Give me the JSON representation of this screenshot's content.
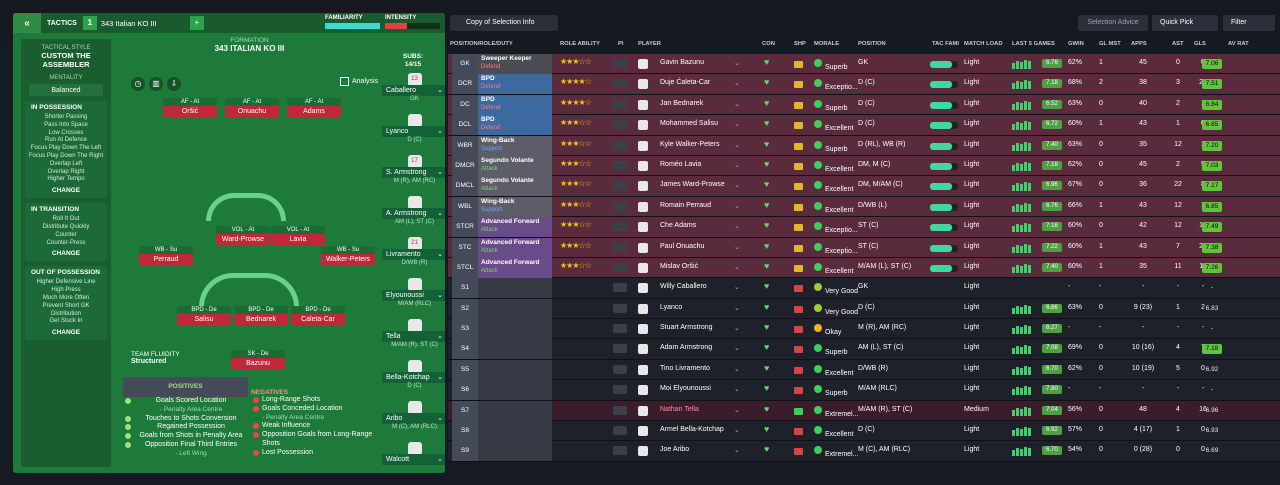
{
  "tactics": {
    "back_label": "«",
    "title": "TACTICS",
    "slot_num": "1",
    "tactic_name": "343 Italian KO III",
    "add": "+",
    "familiarity_label": "FAMILIARITY",
    "intensity_label": "INTENSITY",
    "formation_label": "FORMATION",
    "formation_name": "343 ITALIAN KO III",
    "tactical_style_label": "TACTICAL STYLE",
    "tactical_style": "CUSTOM THE ASSEMBLER",
    "mentality_label": "MENTALITY",
    "mentality": "Balanced",
    "in_possession": {
      "title": "IN POSSESSION",
      "items": [
        "Shorter Passing",
        "Pass Into Space",
        "Low Crosses",
        "Run At Defence",
        "Focus Play Down The Left",
        "Focus Play Down The Right",
        "Overlap Left",
        "Overlap Right",
        "Higher Tempo"
      ],
      "change": "CHANGE"
    },
    "in_transition": {
      "title": "IN TRANSITION",
      "items": [
        "Roll It Out",
        "Distribute Quickly",
        "Counter",
        "Counter-Press"
      ],
      "change": "CHANGE"
    },
    "out_of_possession": {
      "title": "OUT OF POSSESSION",
      "items": [
        "Higher Defensive Line",
        "High Press",
        "Much More Often",
        "Prevent Short GK",
        "Distribution",
        "Get Stuck In"
      ],
      "change": "CHANGE"
    },
    "analysis": "Analysis",
    "subs_label": "SUBS:",
    "subs_count": "14/15",
    "fluidity_label": "TEAM FLUIDITY",
    "fluidity": "Structured",
    "pitch_players": [
      {
        "role": "AF - At",
        "name": "Oršić"
      },
      {
        "role": "AF - At",
        "name": "Onuachu"
      },
      {
        "role": "AF - At",
        "name": "Adams"
      },
      {
        "role": "WB - Su",
        "name": "Perraud"
      },
      {
        "role": "VOL - At",
        "name": "Ward-Prowse"
      },
      {
        "role": "VOL - At",
        "name": "Lavia"
      },
      {
        "role": "WB - Su",
        "name": "Walker-Peters"
      },
      {
        "role": "BPD - De",
        "name": "Salisu"
      },
      {
        "role": "BPD - De",
        "name": "Bednarek"
      },
      {
        "role": "BPD - De",
        "name": "Caleta-Car"
      },
      {
        "role": "SK - De",
        "name": "Bazunu"
      }
    ],
    "subs": [
      {
        "num": "13",
        "name": "Caballero",
        "pos": "GK"
      },
      {
        "num": "",
        "name": "Lyanco",
        "pos": "D (C)"
      },
      {
        "num": "17",
        "name": "S. Armstrong",
        "pos": "M (R), AM (RC)"
      },
      {
        "num": "",
        "name": "A. Armstrong",
        "pos": "AM (L), ST (C)"
      },
      {
        "num": "21",
        "name": "Livramento",
        "pos": "D/WB (R)"
      },
      {
        "num": "",
        "name": "Elyounoussi",
        "pos": "M/AM (RLC)"
      },
      {
        "num": "",
        "name": "Tella",
        "pos": "M/AM (R), ST (C)"
      },
      {
        "num": "",
        "name": "Bella-Kotchap",
        "pos": "D (C)"
      },
      {
        "num": "",
        "name": "Aribo",
        "pos": "M (C), AM (RLC)"
      },
      {
        "num": "",
        "name": "Walcott",
        "pos": ""
      }
    ],
    "recent_label": "RECENT MATCHES ANALYSIS",
    "positives_label": "POSITIVES",
    "positives": [
      "Goals Scored Location",
      "Touches to Shots Conversion",
      "Regained Possession",
      "Goals from Shots in Penalty Area",
      "Opposition Final Third Entries"
    ],
    "positives_sub": {
      "0": "- Penalty Area Centre",
      "4": "- Left Wing"
    },
    "negatives_label": "NEGATIVES",
    "negatives": [
      "Long-Range Shots",
      "Goals Conceded Location",
      "Weak Influence",
      "Opposition Goals from Long-Range Shots",
      "Lost Possession"
    ],
    "negatives_sub": {
      "1": "- Penalty Area Centre"
    }
  },
  "squad": {
    "copy_label": "Copy of Selection Info",
    "advice": "Selection Advice",
    "quick_pick": "Quick Pick",
    "filter": "Filter",
    "headers": [
      "POSITION/ROLE/DUTY",
      "ROLE ABILITY",
      "PI",
      "PLAYER",
      "CON",
      "SHP",
      "MORALE",
      "POSITION",
      "TAC FAMI",
      "MATCH LOAD",
      "LAST 5 GAMES",
      "GWIN",
      "GL MST",
      "APPS",
      "AST",
      "GLS",
      "AV RAT"
    ],
    "rows": [
      {
        "pos": "GK",
        "role": "Sweeper Keeper",
        "duty": "Defend",
        "d": "d",
        "stars": "★★★☆☆",
        "name": "Gavin Bazunu",
        "morale": "Superb",
        "position": "GK",
        "load": "Light",
        "r5": "6.76",
        "gwin": "62%",
        "glm": "1",
        "apps": "45",
        "ast": "0",
        "gls": "0",
        "av": "7.06"
      },
      {
        "pos": "DCR",
        "role": "BPD",
        "duty": "Defend",
        "d": "d",
        "stars": "★★★★☆",
        "name": "Duje Ćaleta-Car",
        "morale": "Exceptio...",
        "position": "D (C)",
        "load": "Light",
        "r5": "7.18",
        "gwin": "68%",
        "glm": "2",
        "apps": "38",
        "ast": "3",
        "gls": "22",
        "av": "7.51"
      },
      {
        "pos": "DC",
        "role": "BPD",
        "duty": "Defend",
        "d": "d",
        "stars": "★★★★☆",
        "name": "Jan Bednarek",
        "morale": "Superb",
        "position": "D (C)",
        "load": "Light",
        "r5": "6.52",
        "gwin": "63%",
        "glm": "0",
        "apps": "40",
        "ast": "2",
        "gls": "1",
        "av": "6.84"
      },
      {
        "pos": "DCL",
        "role": "BPD",
        "duty": "Defend",
        "d": "d",
        "stars": "★★★☆☆",
        "name": "Mohammed Salisu",
        "morale": "Excellent",
        "position": "D (C)",
        "load": "Light",
        "r5": "6.72",
        "gwin": "60%",
        "glm": "1",
        "apps": "43",
        "ast": "1",
        "gls": "0",
        "av": "6.85"
      },
      {
        "pos": "WBR",
        "role": "Wing-Back",
        "duty": "Support",
        "d": "s",
        "stars": "★★★☆☆",
        "name": "Kyle Walker-Peters",
        "morale": "Superb",
        "position": "D (RL), WB (R)",
        "load": "Light",
        "r5": "7.40",
        "gwin": "63%",
        "glm": "0",
        "apps": "35",
        "ast": "12",
        "gls": "1",
        "av": "7.20"
      },
      {
        "pos": "DMCR",
        "role": "Segundo Volante",
        "duty": "Attack",
        "d": "a",
        "stars": "★★★☆☆",
        "name": "Roméo Lavia",
        "morale": "Excellent",
        "position": "DM, M (C)",
        "load": "Light",
        "r5": "7.18",
        "gwin": "62%",
        "glm": "0",
        "apps": "45",
        "ast": "2",
        "gls": "9",
        "av": "7.03"
      },
      {
        "pos": "DMCL",
        "role": "Segundo Volante",
        "duty": "Attack",
        "d": "a",
        "stars": "★★★☆☆",
        "name": "James Ward-Prowse",
        "morale": "Excellent",
        "position": "DM, M/AM (C)",
        "load": "Light",
        "r5": "6.96",
        "gwin": "67%",
        "glm": "0",
        "apps": "36",
        "ast": "22",
        "gls": "8",
        "av": "7.17"
      },
      {
        "pos": "WBL",
        "role": "Wing-Back",
        "duty": "Support",
        "d": "s",
        "stars": "★★★☆☆",
        "name": "Romain Perraud",
        "morale": "Excellent",
        "position": "D/WB (L)",
        "load": "Light",
        "r5": "6.76",
        "gwin": "66%",
        "glm": "1",
        "apps": "43",
        "ast": "12",
        "gls": "1",
        "av": "6.85"
      },
      {
        "pos": "STCR",
        "role": "Advanced Forward",
        "duty": "Attack",
        "d": "a",
        "stars": "★★★☆☆",
        "name": "Che Adams",
        "morale": "Exceptio...",
        "position": "ST (C)",
        "load": "Light",
        "r5": "7.18",
        "gwin": "60%",
        "glm": "0",
        "apps": "42",
        "ast": "12",
        "gls": "18",
        "av": "7.49"
      },
      {
        "pos": "STC",
        "role": "Advanced Forward",
        "duty": "Attack",
        "d": "a",
        "stars": "★★★☆☆",
        "name": "Paul Onuachu",
        "morale": "Exceptio...",
        "position": "ST (C)",
        "load": "Light",
        "r5": "7.22",
        "gwin": "60%",
        "glm": "1",
        "apps": "43",
        "ast": "7",
        "gls": "28",
        "av": "7.38"
      },
      {
        "pos": "STCL",
        "role": "Advanced Forward",
        "duty": "Attack",
        "d": "a",
        "stars": "★★★☆☆",
        "name": "Mislav Oršić",
        "morale": "Excellent",
        "position": "M/AM (L), ST (C)",
        "load": "Light",
        "r5": "7.40",
        "gwin": "60%",
        "glm": "1",
        "apps": "35",
        "ast": "11",
        "gls": "11",
        "av": "7.26"
      },
      {
        "pos": "S1",
        "name": "Willy Caballero",
        "morale": "Very Good",
        "position": "GK",
        "load": "Light",
        "r5": "",
        "gwin": "-",
        "glm": "-",
        "apps": "-",
        "ast": "-",
        "gls": "-",
        "av": "-"
      },
      {
        "pos": "S2",
        "name": "Lyanco",
        "morale": "Very Good",
        "position": "D (C)",
        "load": "Light",
        "r5": "6.86",
        "gwin": "63%",
        "glm": "0",
        "apps": "9 (23)",
        "ast": "1",
        "gls": "2",
        "av": "6.83"
      },
      {
        "pos": "S3",
        "name": "Stuart Armstrong",
        "morale": "Okay",
        "position": "M (R), AM (RC)",
        "load": "Light",
        "r5": "6.27",
        "gwin": "-",
        "glm": "-",
        "apps": "-",
        "ast": "-",
        "gls": "-",
        "av": "-"
      },
      {
        "pos": "S4",
        "name": "Adam Armstrong",
        "morale": "Superb",
        "position": "AM (L), ST (C)",
        "load": "Light",
        "r5": "7.08",
        "gwin": "69%",
        "glm": "0",
        "apps": "10 (16)",
        "ast": "4",
        "gls": "7",
        "av": "7.18"
      },
      {
        "pos": "S5",
        "name": "Tino Livramento",
        "morale": "Excellent",
        "position": "D/WB (R)",
        "load": "Light",
        "r5": "6.70",
        "gwin": "62%",
        "glm": "0",
        "apps": "10 (19)",
        "ast": "5",
        "gls": "0",
        "av": "6.92"
      },
      {
        "pos": "S6",
        "name": "Moi Elyounoussi",
        "morale": "Superb",
        "position": "M/AM (RLC)",
        "load": "Light",
        "r5": "7.80",
        "gwin": "-",
        "glm": "-",
        "apps": "-",
        "ast": "-",
        "gls": "-",
        "av": "-"
      },
      {
        "pos": "S7",
        "name": "Nathan Tella",
        "morale": "Extremel...",
        "position": "M/AM (R), ST (C)",
        "load": "Medium",
        "r5": "7.04",
        "gwin": "56%",
        "glm": "0",
        "apps": "48",
        "ast": "4",
        "gls": "16",
        "av": "6.96"
      },
      {
        "pos": "S8",
        "name": "Armel Bella-Kotchap",
        "morale": "Excellent",
        "position": "D (C)",
        "load": "Light",
        "r5": "6.92",
        "gwin": "57%",
        "glm": "0",
        "apps": "4 (17)",
        "ast": "1",
        "gls": "0",
        "av": "6.93"
      },
      {
        "pos": "S9",
        "name": "Joe Aribo",
        "morale": "Extremel...",
        "position": "M (C), AM (RLC)",
        "load": "Light",
        "r5": "6.70",
        "gwin": "54%",
        "glm": "0",
        "apps": "0 (28)",
        "ast": "0",
        "gls": "0",
        "av": "6.69"
      }
    ]
  }
}
